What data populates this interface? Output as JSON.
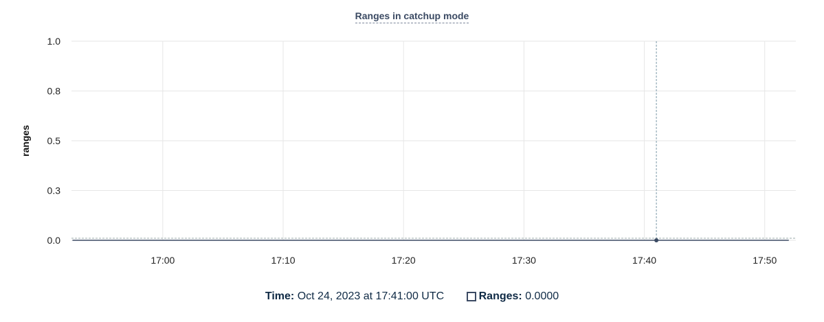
{
  "chart_data": {
    "type": "line",
    "title": "Ranges in catchup mode",
    "ylabel": "ranges",
    "xlabel": "",
    "ylim": [
      0,
      1
    ],
    "xlim": [
      "16:52:25",
      "17:52:35"
    ],
    "yticks": [
      {
        "value": 0,
        "label": "0.0"
      },
      {
        "value": 0.25,
        "label": "0.3"
      },
      {
        "value": 0.5,
        "label": "0.5"
      },
      {
        "value": 0.75,
        "label": "0.8"
      },
      {
        "value": 1,
        "label": "1.0"
      }
    ],
    "xticks": [
      "17:00",
      "17:10",
      "17:20",
      "17:30",
      "17:40",
      "17:50"
    ],
    "grid": true,
    "series": [
      {
        "name": "Ranges",
        "color": "#3b4a63",
        "x": [
          "16:52:30",
          "17:52:00"
        ],
        "y": [
          0,
          0
        ]
      }
    ],
    "hover": {
      "time": "17:41:00",
      "value": 0
    }
  },
  "legend": {
    "time_label": "Time:",
    "time_value": "Oct 24, 2023 at 17:41:00 UTC",
    "series_label": "Ranges:",
    "series_value": "0.0000"
  }
}
